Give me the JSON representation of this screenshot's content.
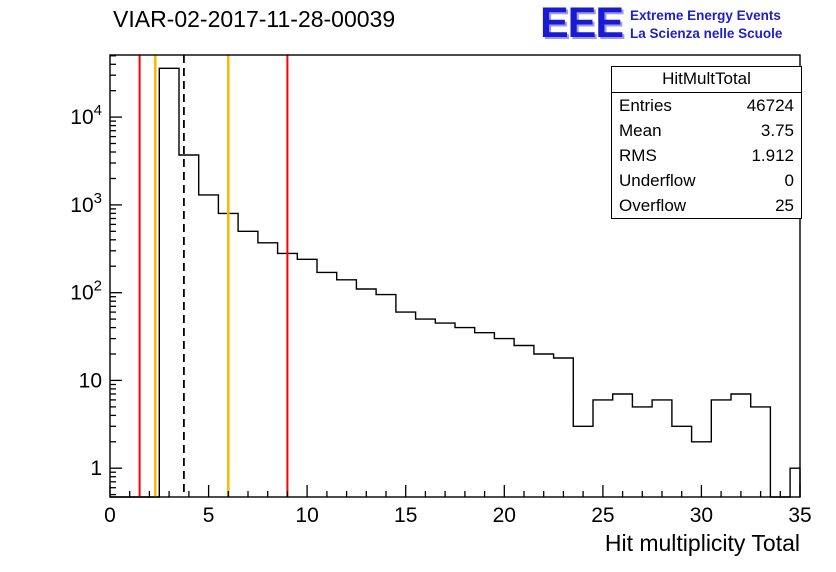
{
  "title": "VIAR-02-2017-11-28-00039",
  "logo": {
    "acronym": "EEE",
    "line1": "Extreme Energy Events",
    "line2": "La Scienza nelle Scuole",
    "color": "#1a1ad0"
  },
  "stats": {
    "title": "HitMultTotal",
    "rows": [
      {
        "label": "Entries",
        "value": "46724"
      },
      {
        "label": "Mean",
        "value": "3.75"
      },
      {
        "label": "RMS",
        "value": "1.912"
      },
      {
        "label": "Underflow",
        "value": "0"
      },
      {
        "label": "Overflow",
        "value": "25"
      }
    ]
  },
  "chart_data": {
    "type": "bar",
    "title": "VIAR-02-2017-11-28-00039",
    "xlabel": "Hit multiplicity Total",
    "ylabel": "",
    "x_range": [
      0,
      35
    ],
    "y_scale": "log",
    "y_range": [
      0.47,
      51000
    ],
    "bin_width": 1,
    "bin_centers": [
      0,
      1,
      2,
      3,
      4,
      5,
      6,
      7,
      8,
      9,
      10,
      11,
      12,
      13,
      14,
      15,
      16,
      17,
      18,
      19,
      20,
      21,
      22,
      23,
      24,
      25,
      26,
      27,
      28,
      29,
      30,
      31,
      32,
      33,
      34,
      35
    ],
    "values": [
      0,
      0,
      0,
      36000,
      3700,
      1300,
      800,
      500,
      370,
      280,
      240,
      170,
      140,
      110,
      95,
      60,
      50,
      45,
      40,
      35,
      30,
      25,
      20,
      18,
      3,
      6,
      7,
      5,
      6,
      3,
      2,
      6,
      7,
      5,
      0,
      1
    ],
    "x_ticks": [
      0,
      5,
      10,
      15,
      20,
      25,
      30,
      35
    ],
    "y_ticks": [
      {
        "value": 1,
        "base": "1",
        "exp": "",
        "label": "1"
      },
      {
        "value": 10,
        "base": "10",
        "exp": "",
        "label": "10"
      },
      {
        "value": 100,
        "base": "10",
        "exp": "2",
        "label": "10^2"
      },
      {
        "value": 1000,
        "base": "10",
        "exp": "3",
        "label": "10^3"
      },
      {
        "value": 10000,
        "base": "10",
        "exp": "4",
        "label": "10^4"
      }
    ],
    "marker_lines": [
      {
        "x": 1.5,
        "color": "#ff0000",
        "style": "solid",
        "width": 2
      },
      {
        "x": 2.3,
        "color": "#ffb400",
        "style": "solid",
        "width": 2.5
      },
      {
        "x": 3.75,
        "color": "#000000",
        "style": "dashed",
        "width": 1.8
      },
      {
        "x": 6.0,
        "color": "#ffb400",
        "style": "solid",
        "width": 2.5
      },
      {
        "x": 9.0,
        "color": "#ff0000",
        "style": "solid",
        "width": 2
      }
    ],
    "line_color": "#000000",
    "grid": false,
    "legend_position": "none"
  }
}
